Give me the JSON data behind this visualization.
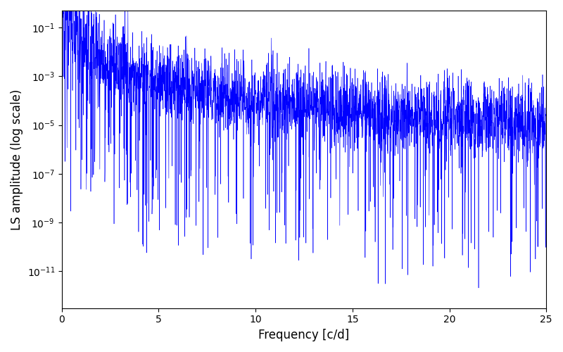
{
  "xlabel": "Frequency [c/d]",
  "ylabel": "LS amplitude (log scale)",
  "line_color": "#0000ff",
  "background_color": "#ffffff",
  "xmin": 0,
  "xmax": 25,
  "ymin": 3e-13,
  "ymax": 0.5,
  "figsize": [
    8.0,
    5.0
  ],
  "dpi": 100,
  "seed": 12345,
  "n_points": 3000,
  "deep_spike1_freq": 16.7,
  "deep_spike2_freq": 23.2
}
